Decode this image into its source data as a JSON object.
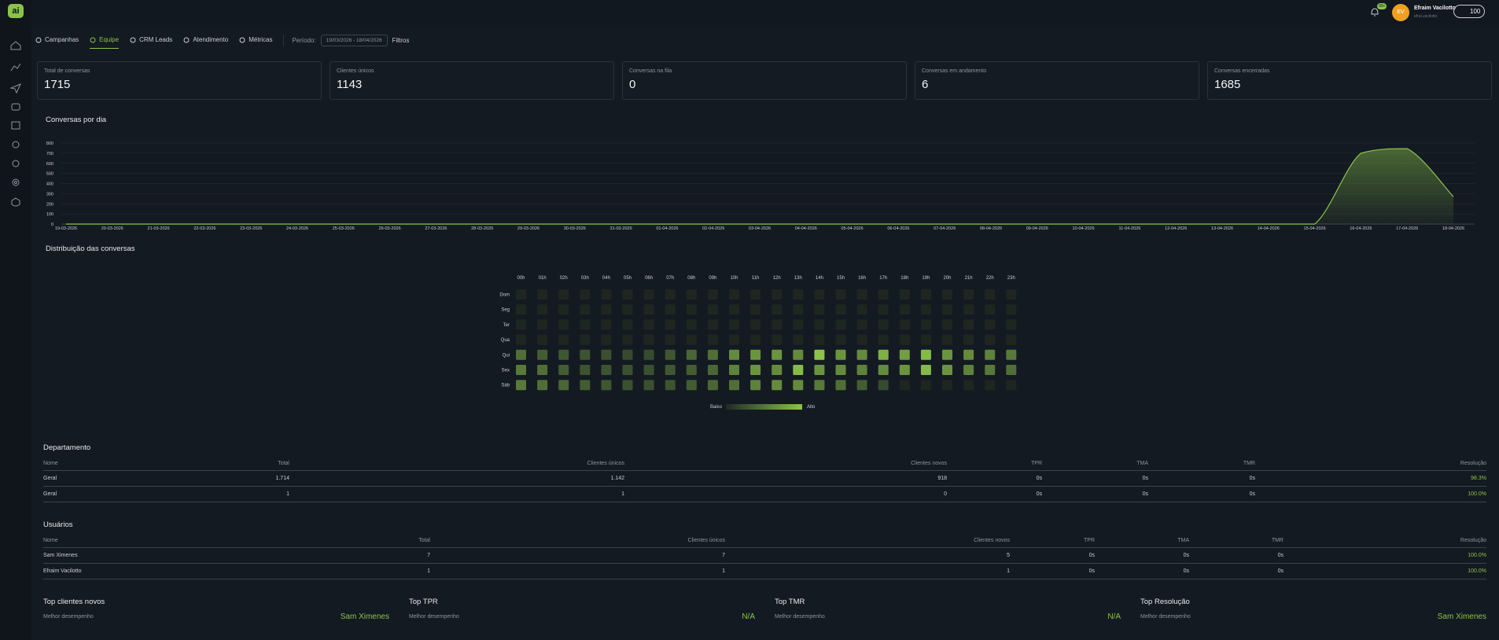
{
  "header": {
    "logo": "ai",
    "notification_badge": "99+",
    "avatar_initials": "EV",
    "user_name": "Efraim Vacilotto",
    "user_email": "efrai.vacilotto",
    "credits": "100"
  },
  "nav": {
    "tabs": [
      "Campanhas",
      "Equipe",
      "CRM Leads",
      "Atendimento",
      "Métricas"
    ],
    "active_index": 1,
    "period_label": "Período:",
    "period": "19/03/2026 - 18/04/2026",
    "filters": "Filtros"
  },
  "kpis": [
    {
      "label": "Total de conversas",
      "value": 1715
    },
    {
      "label": "Clientes únicos",
      "value": 1143
    },
    {
      "label": "Conversas na fila",
      "value": 0
    },
    {
      "label": "Conversas em andamento",
      "value": 6
    },
    {
      "label": "Conversas encerradas",
      "value": 1685
    }
  ],
  "chart_data": [
    {
      "type": "line",
      "title": "Conversas por dia",
      "categories": [
        "19-03-2026",
        "20-03-2026",
        "21-03-2026",
        "22-03-2026",
        "23-03-2026",
        "24-03-2026",
        "25-03-2026",
        "26-03-2026",
        "27-03-2026",
        "28-03-2026",
        "29-03-2026",
        "30-03-2026",
        "31-03-2026",
        "01-04-2026",
        "02-04-2026",
        "03-04-2026",
        "04-04-2026",
        "05-04-2026",
        "06-04-2026",
        "07-04-2026",
        "08-04-2026",
        "09-04-2026",
        "10-04-2026",
        "11-04-2026",
        "12-04-2026",
        "13-04-2026",
        "14-04-2026",
        "15-04-2026",
        "16-04-2026",
        "17-04-2026",
        "18-04-2026"
      ],
      "values": [
        0,
        0,
        0,
        0,
        0,
        0,
        0,
        0,
        0,
        0,
        0,
        0,
        0,
        0,
        0,
        0,
        0,
        0,
        0,
        0,
        0,
        0,
        0,
        0,
        0,
        0,
        0,
        0,
        700,
        745,
        270
      ],
      "color": "#8bc34a",
      "ylim": [
        0,
        800
      ],
      "yticks": [
        0,
        100,
        200,
        300,
        400,
        500,
        600,
        700,
        800
      ],
      "grid": true
    },
    {
      "type": "heatmap",
      "title": "Distribuição das conversas",
      "x": [
        "00h",
        "01h",
        "02h",
        "03h",
        "04h",
        "05h",
        "06h",
        "07h",
        "08h",
        "09h",
        "10h",
        "11h",
        "12h",
        "13h",
        "14h",
        "15h",
        "16h",
        "17h",
        "18h",
        "19h",
        "20h",
        "21h",
        "22h",
        "23h"
      ],
      "y": [
        "Dom",
        "Seg",
        "Ter",
        "Qua",
        "Qui",
        "Sex",
        "Sáb"
      ],
      "values": [
        [
          0,
          0,
          0,
          0,
          0,
          0,
          0,
          0,
          0,
          0,
          0,
          0,
          0,
          0,
          0,
          0,
          0,
          0,
          0,
          0,
          0,
          0,
          0,
          0
        ],
        [
          0,
          0,
          0,
          0,
          0,
          0,
          0,
          0,
          0,
          0,
          0,
          0,
          0,
          0,
          0,
          0,
          0,
          0,
          0,
          0,
          0,
          0,
          0,
          0
        ],
        [
          0,
          0,
          0,
          0,
          0,
          0,
          0,
          0,
          0,
          0,
          0,
          0,
          0,
          0,
          0,
          0,
          0,
          0,
          0,
          0,
          0,
          0,
          0,
          0
        ],
        [
          0,
          0,
          0,
          0,
          0,
          0,
          0,
          0,
          0,
          0,
          0,
          0,
          0,
          0,
          0,
          0,
          0,
          0,
          0,
          0,
          0,
          0,
          0,
          0
        ],
        [
          25,
          15,
          12,
          10,
          8,
          5,
          6,
          12,
          20,
          25,
          40,
          45,
          45,
          40,
          70,
          45,
          40,
          60,
          50,
          65,
          45,
          40,
          35,
          30
        ],
        [
          30,
          25,
          15,
          10,
          10,
          8,
          8,
          12,
          15,
          20,
          35,
          45,
          40,
          65,
          45,
          40,
          35,
          40,
          45,
          65,
          45,
          35,
          30,
          25
        ],
        [
          30,
          25,
          20,
          15,
          12,
          8,
          8,
          10,
          15,
          20,
          25,
          35,
          40,
          40,
          30,
          25,
          15,
          5,
          0,
          0,
          0,
          0,
          0,
          0
        ]
      ],
      "color": "#8bc34a",
      "legend": {
        "low": "Baixo",
        "high": "Alto"
      }
    }
  ],
  "departamento": {
    "title": "Departamento",
    "columns": [
      "Nome",
      "Total",
      "Clientes únicos",
      "Clientes novos",
      "TPR",
      "TMA",
      "TMR",
      "Resolução"
    ],
    "rows": [
      [
        "Geral",
        "1.714",
        "1.142",
        "918",
        "0s",
        "0s",
        "0s",
        "98.3%"
      ],
      [
        "Geral",
        "1",
        "1",
        "0",
        "0s",
        "0s",
        "0s",
        "100.0%"
      ]
    ]
  },
  "usuarios": {
    "title": "Usuários",
    "columns": [
      "Nome",
      "Total",
      "Clientes únicos",
      "Clientes novos",
      "TPR",
      "TMA",
      "TMR",
      "Resolução"
    ],
    "rows": [
      [
        "Sam Ximenes",
        "7",
        "7",
        "5",
        "0s",
        "0s",
        "0s",
        "100.0%"
      ],
      [
        "Efraim Vacilotto",
        "1",
        "1",
        "1",
        "0s",
        "0s",
        "0s",
        "100.0%"
      ]
    ]
  },
  "top_cards": [
    {
      "title": "Top clientes novos",
      "subtitle": "Melhor desempenho",
      "value": "Sam Ximenes"
    },
    {
      "title": "Top TPR",
      "subtitle": "Melhor desempenho",
      "value": "N/A"
    },
    {
      "title": "Top TMR",
      "subtitle": "Melhor desempenho",
      "value": "N/A"
    },
    {
      "title": "Top Resolução",
      "subtitle": "Melhor desempenho",
      "value": "Sam Ximenes"
    }
  ]
}
